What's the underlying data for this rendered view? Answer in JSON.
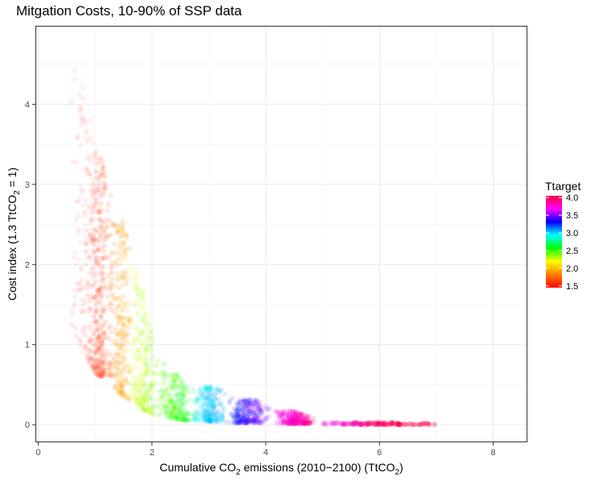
{
  "chart_data": {
    "type": "scatter",
    "title": "Mitgation Costs, 10-90% of SSP data",
    "xlabel": {
      "pre": "Cumulative CO",
      "sub": "2",
      "mid": " emissions (2010−2100) (TtCO",
      "sub2": "2",
      "post": ")"
    },
    "ylabel": {
      "pre": "Cost index (1.3 TtCO",
      "sub": "2",
      "post": " = 1)"
    },
    "xlim": [
      -0.05,
      8.6
    ],
    "ylim": [
      -0.22,
      4.98
    ],
    "x_ticks": [
      0,
      2,
      4,
      6,
      8
    ],
    "x_tick_labels": [
      "0",
      "2",
      "4",
      "6",
      "8"
    ],
    "y_ticks": [
      0,
      1,
      2,
      3,
      4
    ],
    "y_tick_labels": [
      "0",
      "1",
      "2",
      "3",
      "4"
    ],
    "grid": true,
    "color_variable": "Ttarget",
    "colorbar": {
      "title": "Ttarget",
      "range": [
        1.45,
        4.05
      ],
      "ticks": [
        1.5,
        2.0,
        2.5,
        3.0,
        3.5,
        4.0
      ],
      "tick_labels": [
        "1.5",
        "2.0",
        "2.5",
        "3.0",
        "3.5",
        "4.0"
      ],
      "position": "right",
      "colors": [
        "#ff0000",
        "#ff8000",
        "#ffff00",
        "#00ff00",
        "#00ffff",
        "#0000ff",
        "#ff00ff",
        "#ff0040"
      ]
    },
    "point_bands": [
      {
        "x_center": 0.9,
        "x_spread": 0.35,
        "y_low": 0.7,
        "y_high": 4.6,
        "ttarget": 1.5,
        "alpha": 0.06
      },
      {
        "x_center": 1.1,
        "x_spread": 0.25,
        "y_low": 0.6,
        "y_high": 3.4,
        "ttarget": 1.6,
        "alpha": 0.12
      },
      {
        "x_center": 1.45,
        "x_spread": 0.2,
        "y_low": 0.3,
        "y_high": 2.6,
        "ttarget": 1.9,
        "alpha": 0.12
      },
      {
        "x_center": 1.85,
        "x_spread": 0.25,
        "y_low": 0.1,
        "y_high": 2.0,
        "ttarget": 2.3,
        "alpha": 0.12
      },
      {
        "x_center": 2.4,
        "x_spread": 0.35,
        "y_low": 0.05,
        "y_high": 0.8,
        "ttarget": 2.5,
        "alpha": 0.12
      },
      {
        "x_center": 3.0,
        "x_spread": 0.3,
        "y_low": 0.03,
        "y_high": 0.5,
        "ttarget": 3.0,
        "alpha": 0.12
      },
      {
        "x_center": 3.7,
        "x_spread": 0.4,
        "y_low": 0.02,
        "y_high": 0.33,
        "ttarget": 3.4,
        "alpha": 0.12
      },
      {
        "x_center": 4.5,
        "x_spread": 0.35,
        "y_low": 0.01,
        "y_high": 0.17,
        "ttarget": 3.8,
        "alpha": 0.14
      },
      {
        "x_center": 6.0,
        "x_spread": 1.1,
        "y_low": 0.0,
        "y_high": 0.03,
        "ttarget": 4.0,
        "alpha": 0.18
      }
    ],
    "envelope_upper": [
      [
        0.5,
        4.7
      ],
      [
        0.8,
        4.2
      ],
      [
        1.0,
        3.6
      ],
      [
        1.3,
        2.9
      ],
      [
        1.6,
        2.3
      ],
      [
        1.9,
        1.5
      ],
      [
        2.1,
        0.85
      ],
      [
        2.5,
        0.6
      ],
      [
        3.0,
        0.5
      ],
      [
        3.5,
        0.38
      ],
      [
        4.0,
        0.28
      ],
      [
        4.5,
        0.17
      ],
      [
        5.0,
        0.05
      ],
      [
        6.0,
        0.03
      ],
      [
        7.0,
        0.02
      ],
      [
        8.0,
        0.01
      ]
    ],
    "envelope_lower": [
      [
        0.5,
        1.3
      ],
      [
        0.7,
        1.0
      ],
      [
        1.0,
        0.65
      ],
      [
        1.3,
        0.45
      ],
      [
        1.6,
        0.3
      ],
      [
        2.0,
        0.12
      ],
      [
        2.5,
        0.06
      ],
      [
        3.0,
        0.04
      ],
      [
        3.5,
        0.02
      ],
      [
        4.0,
        0.0
      ],
      [
        5.0,
        0.0
      ],
      [
        8.0,
        0.0
      ]
    ]
  }
}
